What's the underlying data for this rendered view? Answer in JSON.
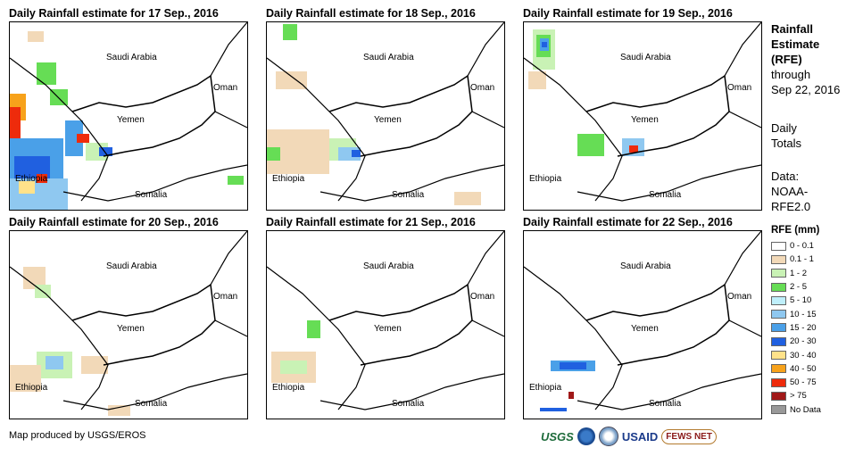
{
  "panels": [
    {
      "title": "Daily Rainfall estimate for 17 Sep., 2016"
    },
    {
      "title": "Daily Rainfall estimate for 18 Sep., 2016"
    },
    {
      "title": "Daily Rainfall estimate for 19 Sep., 2016"
    },
    {
      "title": "Daily Rainfall estimate for 20 Sep., 2016"
    },
    {
      "title": "Daily Rainfall estimate for 21 Sep., 2016"
    },
    {
      "title": "Daily Rainfall estimate for 22 Sep., 2016"
    }
  ],
  "map_labels": {
    "saudi": "Saudi Arabia",
    "oman": "Oman",
    "yemen": "Yemen",
    "ethiopia": "Ethiopia",
    "somalia": "Somalia"
  },
  "sidebar": {
    "title_1": "Rainfall",
    "title_2": "Estimate",
    "title_3": "(RFE)",
    "through": "through",
    "date": "Sep 22, 2016",
    "daily": "Daily",
    "totals": "Totals",
    "data_label": "Data:",
    "data_1": "NOAA-",
    "data_2": "RFE2.0"
  },
  "legend": {
    "title": "RFE (mm)",
    "items": [
      {
        "label": "0 - 0.1",
        "color": "#ffffff"
      },
      {
        "label": "0.1 - 1",
        "color": "#f2d9b8"
      },
      {
        "label": "1 - 2",
        "color": "#c9f2b5"
      },
      {
        "label": "2 - 5",
        "color": "#66dd55"
      },
      {
        "label": "5 - 10",
        "color": "#bfeffb"
      },
      {
        "label": "10 - 15",
        "color": "#8fc8f0"
      },
      {
        "label": "15 - 20",
        "color": "#4aa0e8"
      },
      {
        "label": "20 - 30",
        "color": "#2060e0"
      },
      {
        "label": "30 - 40",
        "color": "#ffe28a"
      },
      {
        "label": "40 - 50",
        "color": "#f7a21b"
      },
      {
        "label": "50 - 75",
        "color": "#ee2b0b"
      },
      {
        "label": "> 75",
        "color": "#a01818"
      },
      {
        "label": "No Data",
        "color": "#999999"
      }
    ]
  },
  "footer": {
    "credit": "Map produced by USGS/EROS",
    "logo_usgs": "USGS",
    "logo_usaid": "USAID",
    "logo_fews": "FEWS NET"
  }
}
